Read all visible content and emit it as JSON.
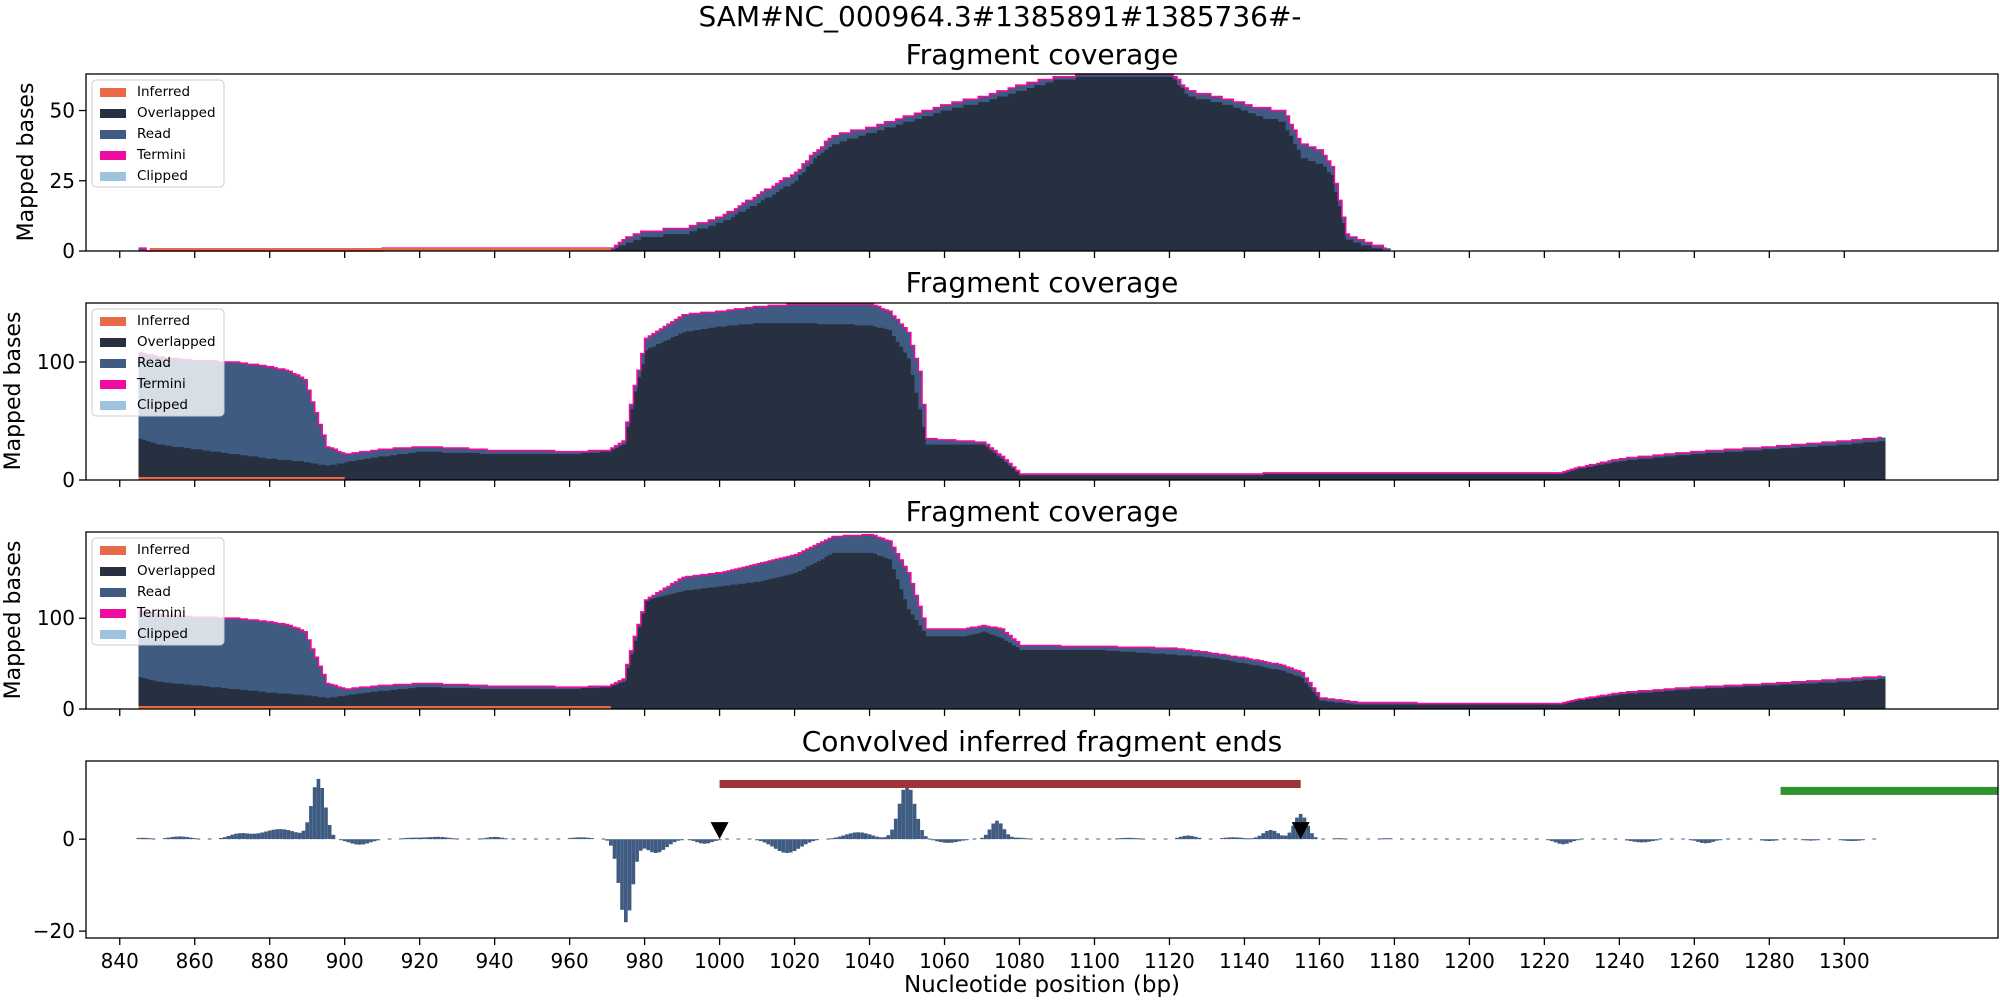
{
  "suptitle": "SAM#NC_000964.3#1385891#1385736#-",
  "xlabel": "Nucleotide position (bp)",
  "legend_items": [
    {
      "label": "Inferred",
      "color": "#e8694a"
    },
    {
      "label": "Overlapped",
      "color": "#263041"
    },
    {
      "label": "Read",
      "color": "#3f5b82"
    },
    {
      "label": "Termini",
      "color": "#ef0b9d"
    },
    {
      "label": "Clipped",
      "color": "#9ec3df"
    }
  ],
  "x_ticks": [
    840,
    860,
    880,
    900,
    920,
    940,
    960,
    980,
    1000,
    1020,
    1040,
    1060,
    1080,
    1100,
    1120,
    1140,
    1160,
    1180,
    1200,
    1220,
    1240,
    1260,
    1280,
    1300
  ],
  "chart_data": [
    {
      "type": "area",
      "title": "Fragment coverage",
      "ylabel": "Mapped bases",
      "xlim": [
        831,
        1341
      ],
      "ylim": [
        0,
        63
      ],
      "yticks": [
        0,
        25,
        50
      ],
      "legend": "top-left",
      "inferred": [
        [
          848,
          0
        ],
        [
          971,
          0
        ]
      ],
      "read_top": [
        [
          845,
          1
        ],
        [
          848,
          0
        ],
        [
          971,
          1
        ],
        [
          975,
          5
        ],
        [
          980,
          7
        ],
        [
          990,
          8
        ],
        [
          1000,
          12
        ],
        [
          1010,
          20
        ],
        [
          1020,
          28
        ],
        [
          1025,
          35
        ],
        [
          1030,
          41
        ],
        [
          1040,
          44
        ],
        [
          1050,
          48
        ],
        [
          1060,
          52
        ],
        [
          1070,
          55
        ],
        [
          1080,
          59
        ],
        [
          1090,
          62
        ],
        [
          1100,
          63
        ],
        [
          1120,
          63
        ],
        [
          1125,
          57
        ],
        [
          1135,
          54
        ],
        [
          1143,
          51
        ],
        [
          1150,
          50
        ],
        [
          1155,
          38
        ],
        [
          1160,
          36
        ],
        [
          1163,
          30
        ],
        [
          1167,
          6
        ],
        [
          1172,
          3
        ],
        [
          1178,
          1
        ]
      ],
      "overlapped_top": [
        [
          845,
          0
        ],
        [
          971,
          0
        ],
        [
          975,
          3
        ],
        [
          980,
          5
        ],
        [
          990,
          6
        ],
        [
          1000,
          10
        ],
        [
          1010,
          17
        ],
        [
          1020,
          25
        ],
        [
          1025,
          33
        ],
        [
          1030,
          38
        ],
        [
          1040,
          42
        ],
        [
          1050,
          46
        ],
        [
          1060,
          50
        ],
        [
          1070,
          53
        ],
        [
          1080,
          57
        ],
        [
          1090,
          61
        ],
        [
          1100,
          62
        ],
        [
          1120,
          62
        ],
        [
          1125,
          55
        ],
        [
          1135,
          52
        ],
        [
          1143,
          48
        ],
        [
          1150,
          46
        ],
        [
          1155,
          33
        ],
        [
          1160,
          31
        ],
        [
          1163,
          27
        ],
        [
          1167,
          4
        ],
        [
          1172,
          2
        ],
        [
          1178,
          0
        ]
      ]
    },
    {
      "type": "area",
      "title": "Fragment coverage",
      "ylabel": "Mapped bases",
      "xlim": [
        831,
        1341
      ],
      "ylim": [
        0,
        150
      ],
      "yticks": [
        0,
        100
      ],
      "legend": "top-left",
      "inferred": [
        [
          845,
          0
        ],
        [
          900,
          0
        ]
      ],
      "read_top": [
        [
          845,
          108
        ],
        [
          850,
          104
        ],
        [
          860,
          101
        ],
        [
          870,
          100
        ],
        [
          880,
          96
        ],
        [
          885,
          92
        ],
        [
          889,
          85
        ],
        [
          895,
          28
        ],
        [
          900,
          22
        ],
        [
          910,
          26
        ],
        [
          920,
          28
        ],
        [
          930,
          27
        ],
        [
          940,
          25
        ],
        [
          950,
          25
        ],
        [
          960,
          24
        ],
        [
          970,
          25
        ],
        [
          974,
          33
        ],
        [
          977,
          80
        ],
        [
          980,
          120
        ],
        [
          990,
          140
        ],
        [
          1000,
          143
        ],
        [
          1010,
          147
        ],
        [
          1020,
          149
        ],
        [
          1040,
          149
        ],
        [
          1045,
          143
        ],
        [
          1050,
          125
        ],
        [
          1053,
          92
        ],
        [
          1055,
          35
        ],
        [
          1070,
          32
        ],
        [
          1075,
          20
        ],
        [
          1080,
          5
        ],
        [
          1090,
          5
        ],
        [
          1200,
          6
        ],
        [
          1224,
          6
        ],
        [
          1228,
          10
        ],
        [
          1240,
          18
        ],
        [
          1260,
          24
        ],
        [
          1280,
          28
        ],
        [
          1300,
          33
        ],
        [
          1310,
          36
        ]
      ],
      "overlapped_top": [
        [
          845,
          35
        ],
        [
          850,
          30
        ],
        [
          860,
          26
        ],
        [
          870,
          22
        ],
        [
          880,
          18
        ],
        [
          890,
          15
        ],
        [
          895,
          12
        ],
        [
          900,
          15
        ],
        [
          910,
          20
        ],
        [
          920,
          24
        ],
        [
          930,
          23
        ],
        [
          940,
          22
        ],
        [
          950,
          22
        ],
        [
          960,
          22
        ],
        [
          970,
          24
        ],
        [
          974,
          30
        ],
        [
          977,
          75
        ],
        [
          980,
          110
        ],
        [
          990,
          125
        ],
        [
          1000,
          130
        ],
        [
          1010,
          133
        ],
        [
          1020,
          133
        ],
        [
          1040,
          131
        ],
        [
          1045,
          127
        ],
        [
          1050,
          103
        ],
        [
          1053,
          60
        ],
        [
          1055,
          30
        ],
        [
          1070,
          30
        ],
        [
          1075,
          18
        ],
        [
          1080,
          4
        ],
        [
          1090,
          4
        ],
        [
          1200,
          5
        ],
        [
          1224,
          5
        ],
        [
          1228,
          9
        ],
        [
          1240,
          16
        ],
        [
          1260,
          22
        ],
        [
          1280,
          26
        ],
        [
          1300,
          30
        ],
        [
          1310,
          33
        ]
      ]
    },
    {
      "type": "area",
      "title": "Fragment coverage",
      "ylabel": "Mapped bases",
      "xlim": [
        831,
        1341
      ],
      "ylim": [
        0,
        195
      ],
      "yticks": [
        0,
        100
      ],
      "legend": "top-left",
      "inferred": [
        [
          845,
          0
        ],
        [
          971,
          0
        ]
      ],
      "read_top": [
        [
          845,
          108
        ],
        [
          850,
          104
        ],
        [
          860,
          101
        ],
        [
          870,
          100
        ],
        [
          880,
          96
        ],
        [
          885,
          92
        ],
        [
          889,
          85
        ],
        [
          895,
          28
        ],
        [
          900,
          22
        ],
        [
          910,
          26
        ],
        [
          920,
          28
        ],
        [
          930,
          27
        ],
        [
          940,
          25
        ],
        [
          950,
          25
        ],
        [
          960,
          24
        ],
        [
          970,
          25
        ],
        [
          974,
          33
        ],
        [
          977,
          80
        ],
        [
          980,
          120
        ],
        [
          990,
          145
        ],
        [
          1000,
          150
        ],
        [
          1010,
          160
        ],
        [
          1020,
          170
        ],
        [
          1030,
          190
        ],
        [
          1040,
          192
        ],
        [
          1045,
          185
        ],
        [
          1050,
          150
        ],
        [
          1055,
          88
        ],
        [
          1065,
          88
        ],
        [
          1070,
          92
        ],
        [
          1075,
          88
        ],
        [
          1080,
          70
        ],
        [
          1100,
          69
        ],
        [
          1120,
          67
        ],
        [
          1130,
          62
        ],
        [
          1140,
          56
        ],
        [
          1150,
          48
        ],
        [
          1155,
          40
        ],
        [
          1160,
          12
        ],
        [
          1170,
          7
        ],
        [
          1200,
          6
        ],
        [
          1224,
          6
        ],
        [
          1228,
          10
        ],
        [
          1240,
          18
        ],
        [
          1260,
          24
        ],
        [
          1280,
          28
        ],
        [
          1300,
          33
        ],
        [
          1310,
          36
        ]
      ],
      "overlapped_top": [
        [
          845,
          35
        ],
        [
          850,
          30
        ],
        [
          860,
          26
        ],
        [
          870,
          22
        ],
        [
          880,
          18
        ],
        [
          890,
          15
        ],
        [
          895,
          12
        ],
        [
          900,
          15
        ],
        [
          910,
          20
        ],
        [
          920,
          24
        ],
        [
          930,
          23
        ],
        [
          940,
          22
        ],
        [
          950,
          22
        ],
        [
          960,
          22
        ],
        [
          970,
          24
        ],
        [
          974,
          30
        ],
        [
          977,
          75
        ],
        [
          980,
          120
        ],
        [
          990,
          130
        ],
        [
          1000,
          135
        ],
        [
          1010,
          140
        ],
        [
          1020,
          150
        ],
        [
          1030,
          172
        ],
        [
          1040,
          172
        ],
        [
          1045,
          165
        ],
        [
          1050,
          110
        ],
        [
          1055,
          80
        ],
        [
          1065,
          80
        ],
        [
          1070,
          85
        ],
        [
          1075,
          78
        ],
        [
          1080,
          65
        ],
        [
          1100,
          65
        ],
        [
          1120,
          60
        ],
        [
          1130,
          57
        ],
        [
          1140,
          50
        ],
        [
          1150,
          42
        ],
        [
          1155,
          34
        ],
        [
          1160,
          9
        ],
        [
          1170,
          5
        ],
        [
          1200,
          5
        ],
        [
          1224,
          5
        ],
        [
          1228,
          9
        ],
        [
          1240,
          16
        ],
        [
          1260,
          22
        ],
        [
          1280,
          26
        ],
        [
          1300,
          30
        ],
        [
          1310,
          33
        ]
      ]
    },
    {
      "type": "bar",
      "title": "Convolved inferred fragment ends",
      "ylabel": "",
      "xlim": [
        831,
        1341
      ],
      "ylim": [
        -21.5,
        17
      ],
      "yticks": [
        -20,
        0
      ],
      "peaks": [
        [
          846,
          0.3,
          3
        ],
        [
          856,
          0.6,
          4
        ],
        [
          872,
          1.2,
          4
        ],
        [
          880,
          1.3,
          5
        ],
        [
          893,
          13,
          2.5
        ],
        [
          885,
          1.5,
          5
        ],
        [
          904,
          -1.2,
          4
        ],
        [
          918,
          0.3,
          4
        ],
        [
          925,
          0.5,
          4
        ],
        [
          940,
          0.5,
          3
        ],
        [
          963,
          0.4,
          4
        ],
        [
          975,
          -18,
          2.5
        ],
        [
          983,
          -3,
          4
        ],
        [
          996,
          -1,
          3
        ],
        [
          1018,
          -3,
          5
        ],
        [
          1037,
          1.5,
          5
        ],
        [
          1050,
          12,
          3
        ],
        [
          1061,
          -0.8,
          4
        ],
        [
          1074,
          4,
          2.5
        ],
        [
          1080,
          0.3,
          3
        ],
        [
          1109,
          0.3,
          4
        ],
        [
          1125,
          0.8,
          3
        ],
        [
          1137,
          0.4,
          4
        ],
        [
          1147,
          2,
          3
        ],
        [
          1155,
          5.5,
          2.5
        ],
        [
          1165,
          0.2,
          3
        ],
        [
          1178,
          0.2,
          3
        ],
        [
          1225,
          -1.1,
          3
        ],
        [
          1246,
          -0.7,
          4
        ],
        [
          1263,
          -0.9,
          3
        ],
        [
          1280,
          -0.4,
          3
        ],
        [
          1291,
          -0.3,
          3
        ],
        [
          1302,
          -0.4,
          4
        ]
      ],
      "segments": [
        [
          975,
          1004
        ],
        [
          1013,
          1082
        ],
        [
          1103,
          1114
        ],
        [
          1124,
          1135
        ],
        [
          1141,
          1172
        ],
        [
          1223,
          1310
        ]
      ],
      "markers": [
        1000,
        1155
      ],
      "red_bar": {
        "start": 1000,
        "end": 1155,
        "y": 12,
        "color": "#a0323a"
      },
      "green_bar": {
        "start": 1283,
        "end": 1341,
        "y": 10.5,
        "color": "#2f942f"
      }
    }
  ]
}
